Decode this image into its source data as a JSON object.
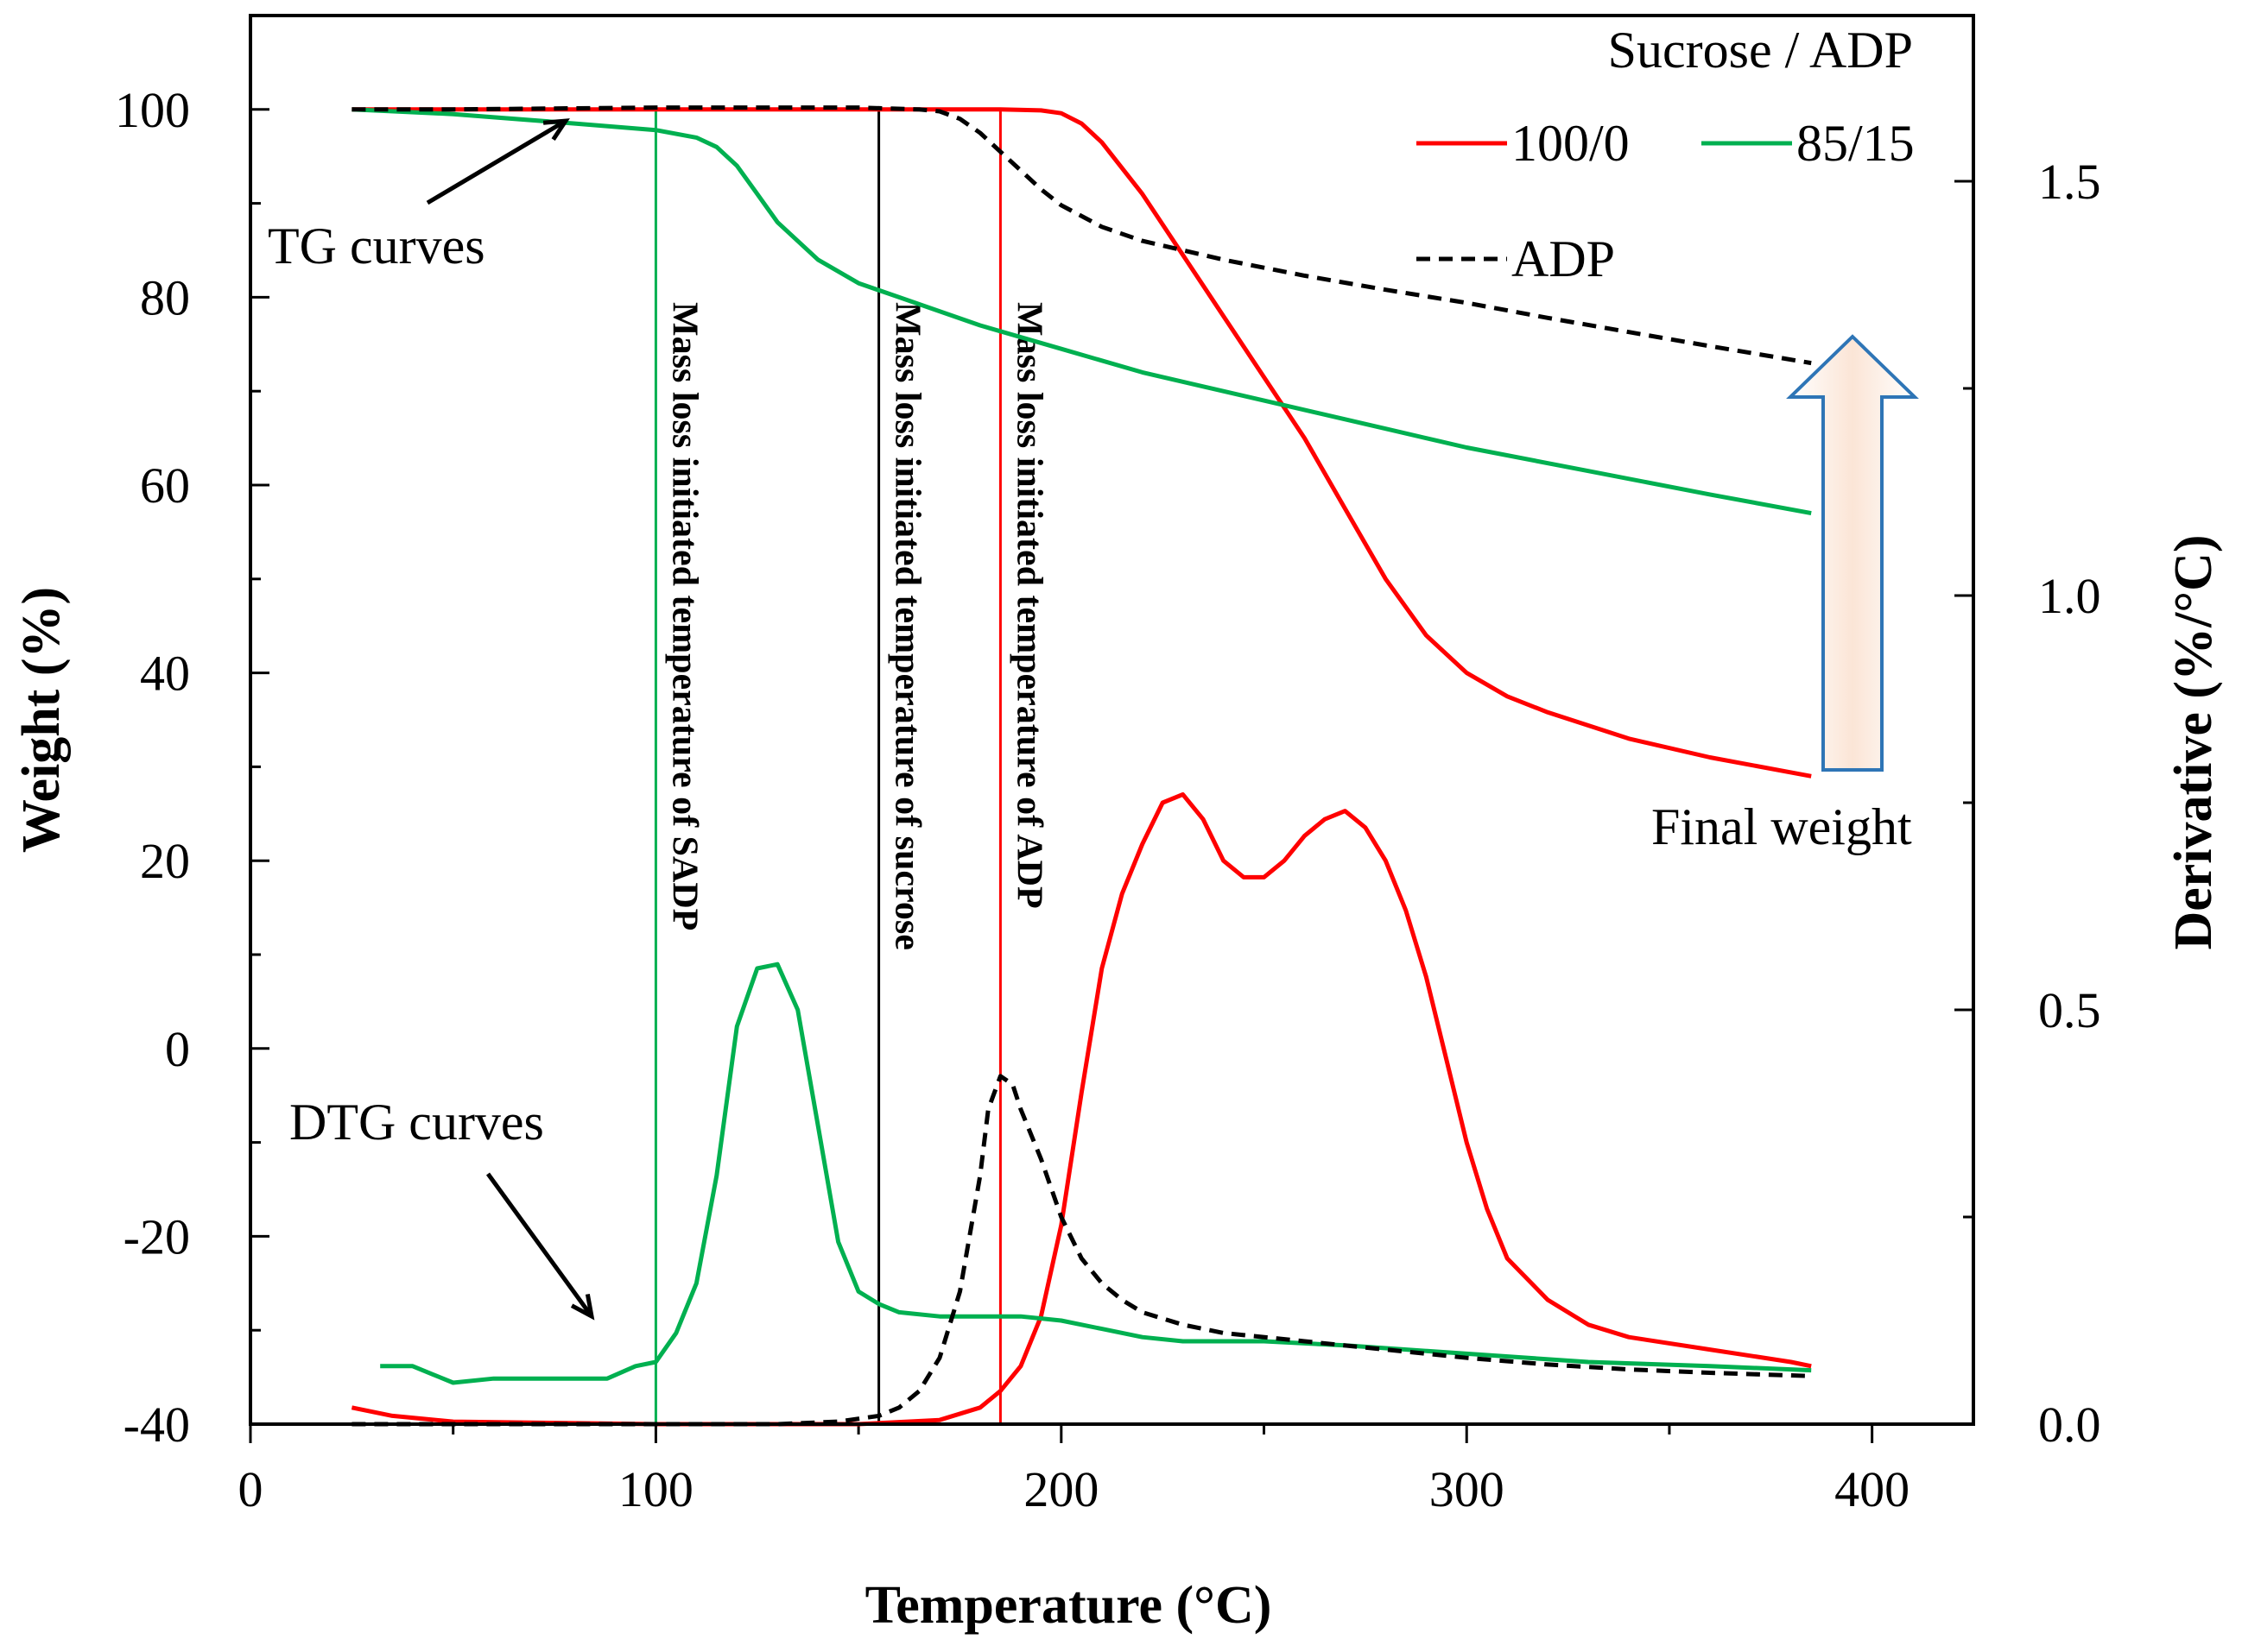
{
  "chart_data": {
    "type": "line",
    "xlabel": "Temperature (°C)",
    "ylabel": "Weight (%)",
    "y2label": "Derivative (%/°C)",
    "xlim": [
      0,
      425
    ],
    "ylim": [
      -40,
      110
    ],
    "y2lim": [
      0,
      1.7
    ],
    "xticks": [
      0,
      100,
      200,
      300,
      400
    ],
    "yticks": [
      -40,
      -20,
      0,
      20,
      40,
      60,
      80,
      100
    ],
    "y2ticks": [
      0.0,
      0.5,
      1.0,
      1.5
    ],
    "y2tick_labels": [
      "0.0",
      "0.5",
      "1.0",
      "1.5"
    ],
    "legend": {
      "title": "Sucrose / ADP",
      "entries": [
        {
          "label": "100/0",
          "color": "#ff0000",
          "dash": "solid"
        },
        {
          "label": "85/15",
          "color": "#00b050",
          "dash": "solid"
        },
        {
          "label": "ADP",
          "color": "#000000",
          "dash": "dashed"
        }
      ]
    },
    "tg_series": [
      {
        "name": "100/0",
        "color": "#ff0000",
        "dash": "solid",
        "x": [
          25,
          50,
          100,
          150,
          185,
          195,
          200,
          205,
          210,
          220,
          230,
          240,
          250,
          260,
          270,
          280,
          290,
          300,
          310,
          320,
          340,
          360,
          385
        ],
        "y": [
          100,
          100,
          100,
          100,
          100,
          99.9,
          99.6,
          98.5,
          96.5,
          91,
          84.5,
          78,
          71.5,
          65,
          57.5,
          50,
          44,
          40,
          37.5,
          35.8,
          33,
          31,
          29
        ]
      },
      {
        "name": "85/15",
        "color": "#00b050",
        "dash": "solid",
        "x": [
          25,
          50,
          80,
          100,
          110,
          115,
          120,
          125,
          130,
          140,
          150,
          160,
          180,
          200,
          220,
          250,
          280,
          300,
          330,
          360,
          385
        ],
        "y": [
          100,
          99.5,
          98.5,
          97.8,
          97,
          96,
          94,
          91,
          88,
          84,
          81.5,
          80,
          77,
          74.5,
          72,
          69,
          66,
          64,
          61.5,
          59,
          57
        ]
      },
      {
        "name": "ADP",
        "color": "#000000",
        "dash": "dashed",
        "x": [
          25,
          50,
          100,
          150,
          165,
          170,
          175,
          180,
          185,
          190,
          195,
          200,
          210,
          220,
          240,
          260,
          280,
          300,
          320,
          340,
          360,
          385
        ],
        "y": [
          100,
          100,
          100.2,
          100.2,
          100,
          99.8,
          99,
          97.5,
          95.5,
          93.5,
          91.5,
          89.8,
          87.5,
          86,
          84,
          82.3,
          80.8,
          79.4,
          77.8,
          76.3,
          74.8,
          73
        ]
      }
    ],
    "dtg_series": [
      {
        "name": "100/0",
        "color": "#ff0000",
        "dash": "solid",
        "x": [
          25,
          35,
          50,
          100,
          150,
          170,
          180,
          185,
          190,
          195,
          200,
          205,
          210,
          215,
          220,
          225,
          230,
          235,
          240,
          245,
          250,
          255,
          260,
          265,
          270,
          275,
          280,
          285,
          290,
          295,
          300,
          305,
          310,
          320,
          330,
          340,
          360,
          380,
          385
        ],
        "y": [
          0.02,
          0.01,
          0.003,
          0,
          0,
          0.005,
          0.02,
          0.04,
          0.07,
          0.13,
          0.24,
          0.4,
          0.55,
          0.64,
          0.7,
          0.75,
          0.76,
          0.73,
          0.68,
          0.66,
          0.66,
          0.68,
          0.71,
          0.73,
          0.74,
          0.72,
          0.68,
          0.62,
          0.54,
          0.44,
          0.34,
          0.26,
          0.2,
          0.15,
          0.12,
          0.105,
          0.09,
          0.075,
          0.07
        ]
      },
      {
        "name": "85/15",
        "color": "#00b050",
        "dash": "solid",
        "x": [
          32,
          40,
          45,
          50,
          60,
          70,
          80,
          88,
          95,
          100,
          105,
          110,
          115,
          120,
          125,
          130,
          135,
          140,
          145,
          150,
          155,
          160,
          170,
          180,
          190,
          200,
          210,
          220,
          230,
          250,
          270,
          300,
          330,
          360,
          385
        ],
        "y": [
          0.07,
          0.07,
          0.06,
          0.05,
          0.055,
          0.055,
          0.055,
          0.055,
          0.07,
          0.075,
          0.11,
          0.17,
          0.3,
          0.48,
          0.55,
          0.555,
          0.5,
          0.36,
          0.22,
          0.16,
          0.145,
          0.135,
          0.13,
          0.13,
          0.13,
          0.125,
          0.115,
          0.105,
          0.1,
          0.1,
          0.095,
          0.085,
          0.075,
          0.07,
          0.065
        ]
      },
      {
        "name": "ADP",
        "color": "#000000",
        "dash": "dashed",
        "x": [
          25,
          50,
          100,
          130,
          145,
          155,
          160,
          165,
          170,
          175,
          180,
          182,
          185,
          188,
          190,
          195,
          200,
          205,
          210,
          215,
          220,
          230,
          240,
          260,
          280,
          300,
          320,
          340,
          360,
          385
        ],
        "y": [
          0,
          0,
          0,
          0,
          0.003,
          0.01,
          0.02,
          0.04,
          0.08,
          0.16,
          0.3,
          0.38,
          0.42,
          0.41,
          0.38,
          0.32,
          0.25,
          0.2,
          0.17,
          0.15,
          0.135,
          0.12,
          0.11,
          0.1,
          0.09,
          0.08,
          0.072,
          0.066,
          0.062,
          0.058
        ]
      }
    ],
    "onset_lines": [
      {
        "x": 100,
        "color": "#00b050",
        "label": "Mass loss initiated temperature of SADP"
      },
      {
        "x": 155,
        "color": "#000000",
        "label": "Mass loss initiated temperature of sucrose"
      },
      {
        "x": 185,
        "color": "#ff0000",
        "label": "Mass loss initiated temperature of ADP"
      }
    ],
    "annotations": {
      "tg": "TG curves",
      "dtg": "DTG curves",
      "final": "Final weight"
    },
    "arrow_color": "#2e75b6",
    "arrow_fill": "#fbe5d6"
  }
}
